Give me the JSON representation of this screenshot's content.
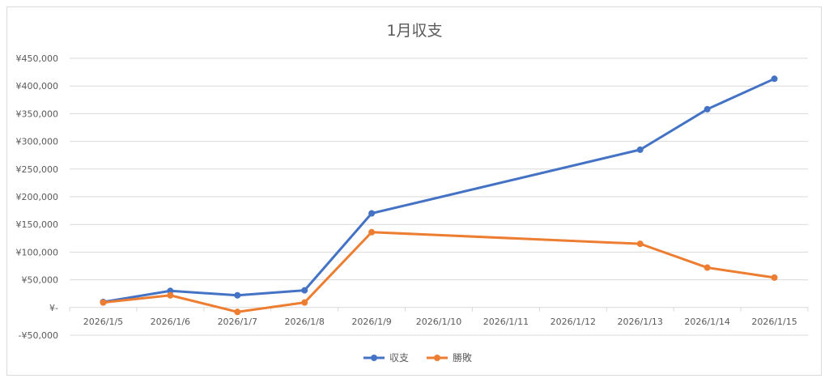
{
  "chart_data": {
    "type": "line",
    "title": "1月収支",
    "categories": [
      "2026/1/5",
      "2026/1/6",
      "2026/1/7",
      "2026/1/8",
      "2026/1/9",
      "2026/1/10",
      "2026/1/11",
      "2026/1/12",
      "2026/1/13",
      "2026/1/14",
      "2026/1/15"
    ],
    "y_ticks": [
      {
        "value": 450000,
        "label": "¥450,000"
      },
      {
        "value": 400000,
        "label": "¥400,000"
      },
      {
        "value": 350000,
        "label": "¥350,000"
      },
      {
        "value": 300000,
        "label": "¥300,000"
      },
      {
        "value": 250000,
        "label": "¥250,000"
      },
      {
        "value": 200000,
        "label": "¥200,000"
      },
      {
        "value": 150000,
        "label": "¥150,000"
      },
      {
        "value": 100000,
        "label": "¥100,000"
      },
      {
        "value": 50000,
        "label": "¥50,000"
      },
      {
        "value": 0,
        "label": "¥-"
      },
      {
        "value": -50000,
        "label": "-¥50,000"
      }
    ],
    "ylim": [
      -50000,
      450000
    ],
    "grid": true,
    "legend_position": "bottom",
    "series": [
      {
        "name": "収支",
        "color": "#4472c4",
        "points": [
          {
            "x": "2026/1/5",
            "y": 10000
          },
          {
            "x": "2026/1/6",
            "y": 30000
          },
          {
            "x": "2026/1/7",
            "y": 22000
          },
          {
            "x": "2026/1/8",
            "y": 31000
          },
          {
            "x": "2026/1/9",
            "y": 170000
          },
          {
            "x": "2026/1/13",
            "y": 285000
          },
          {
            "x": "2026/1/14",
            "y": 358000
          },
          {
            "x": "2026/1/15",
            "y": 413000
          }
        ]
      },
      {
        "name": "勝敗",
        "color": "#ed7d31",
        "points": [
          {
            "x": "2026/1/5",
            "y": 9000
          },
          {
            "x": "2026/1/6",
            "y": 22000
          },
          {
            "x": "2026/1/7",
            "y": -8000
          },
          {
            "x": "2026/1/8",
            "y": 9000
          },
          {
            "x": "2026/1/9",
            "y": 136000
          },
          {
            "x": "2026/1/13",
            "y": 115000
          },
          {
            "x": "2026/1/14",
            "y": 72000
          },
          {
            "x": "2026/1/15",
            "y": 54000
          }
        ]
      }
    ]
  }
}
